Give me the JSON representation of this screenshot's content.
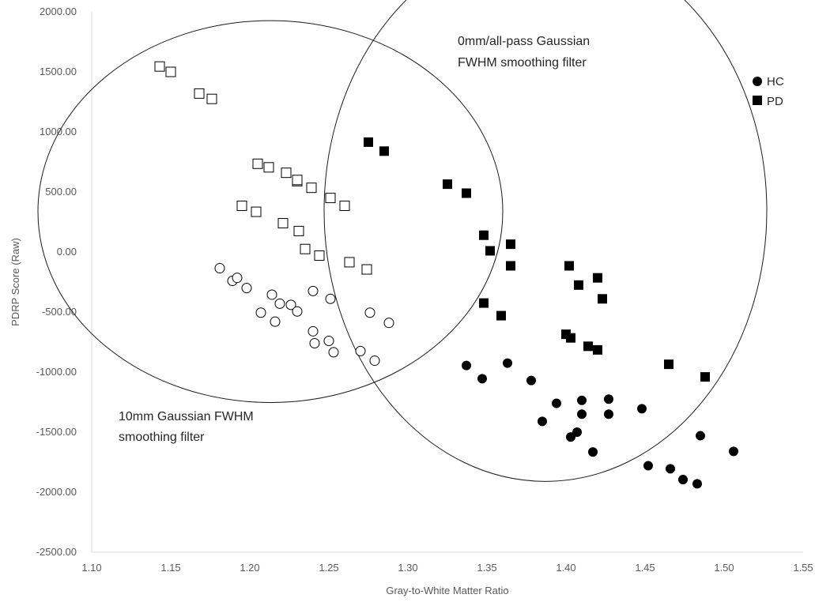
{
  "chart_data": {
    "type": "scatter",
    "title": "",
    "xlabel": "Gray-to-White Matter Ratio",
    "ylabel": "PDRP Score (Raw)",
    "xlim": [
      1.1,
      1.55
    ],
    "ylim": [
      -2500,
      2000
    ],
    "x_ticks": [
      "1.10",
      "1.15",
      "1.20",
      "1.25",
      "1.30",
      "1.35",
      "1.40",
      "1.45",
      "1.50",
      "1.55"
    ],
    "y_ticks": [
      "2000.00",
      "1500.00",
      "1000.00",
      "500.00",
      "0.00",
      "-500.00",
      "-1000.00",
      "-1500.00",
      "-2000.00",
      "-2500.00"
    ],
    "grid": false,
    "legend": {
      "position": "top-right",
      "entries": [
        {
          "label": "HC",
          "marker": "circle"
        },
        {
          "label": "PD",
          "marker": "square"
        }
      ]
    },
    "annotations": [
      {
        "text_lines": [
          "0mm/all-pass Gaussian",
          "FWHM smoothing filter"
        ],
        "circle_center": [
          1.387,
          345
        ],
        "circle_radius_x": 0.14,
        "circle_radius_y": 2255
      },
      {
        "text_lines": [
          "10mm Gaussian FWHM",
          "smoothing filter"
        ],
        "circle_center": [
          1.213,
          337
        ],
        "circle_radius_x": 0.147,
        "circle_radius_y": 1590
      }
    ],
    "series": [
      {
        "name": "PD",
        "condition": "0mm",
        "marker": "square",
        "filled": true,
        "x": [
          1.275,
          1.285,
          1.325,
          1.337,
          1.348,
          1.352,
          1.365,
          1.365,
          1.402,
          1.42,
          1.408,
          1.423,
          1.348,
          1.359,
          1.4,
          1.403,
          1.414,
          1.42,
          1.465,
          1.488
        ],
        "y": [
          915,
          840,
          565,
          490,
          140,
          10,
          65,
          -115,
          -115,
          -215,
          -275,
          -390,
          -425,
          -530,
          -685,
          -715,
          -785,
          -815,
          -935,
          -1040
        ]
      },
      {
        "name": "HC",
        "condition": "0mm",
        "marker": "circle",
        "filled": true,
        "x": [
          1.337,
          1.347,
          1.363,
          1.378,
          1.394,
          1.385,
          1.41,
          1.427,
          1.41,
          1.427,
          1.448,
          1.407,
          1.403,
          1.417,
          1.485,
          1.452,
          1.466,
          1.474,
          1.483,
          1.506
        ],
        "y": [
          -945,
          -1055,
          -925,
          -1070,
          -1260,
          -1410,
          -1235,
          -1225,
          -1350,
          -1350,
          -1305,
          -1500,
          -1540,
          -1665,
          -1530,
          -1780,
          -1805,
          -1895,
          -1930,
          -1660
        ]
      },
      {
        "name": "PD",
        "condition": "10mm",
        "marker": "square",
        "filled": false,
        "x": [
          1.143,
          1.15,
          1.168,
          1.176,
          1.205,
          1.212,
          1.223,
          1.23,
          1.23,
          1.239,
          1.251,
          1.26,
          1.195,
          1.204,
          1.221,
          1.231,
          1.235,
          1.244,
          1.263,
          1.274
        ],
        "y": [
          1545,
          1500,
          1320,
          1275,
          735,
          705,
          660,
          590,
          600,
          535,
          450,
          385,
          385,
          335,
          240,
          175,
          25,
          -30,
          -85,
          -145
        ]
      },
      {
        "name": "HC",
        "condition": "10mm",
        "marker": "circle",
        "filled": false,
        "x": [
          1.181,
          1.189,
          1.192,
          1.198,
          1.214,
          1.219,
          1.226,
          1.23,
          1.207,
          1.216,
          1.24,
          1.251,
          1.24,
          1.241,
          1.25,
          1.253,
          1.27,
          1.276,
          1.279,
          1.288
        ],
        "y": [
          -135,
          -240,
          -215,
          -300,
          -355,
          -430,
          -440,
          -495,
          -505,
          -580,
          -325,
          -390,
          -660,
          -760,
          -740,
          -835,
          -825,
          -505,
          -905,
          -590
        ]
      }
    ]
  }
}
